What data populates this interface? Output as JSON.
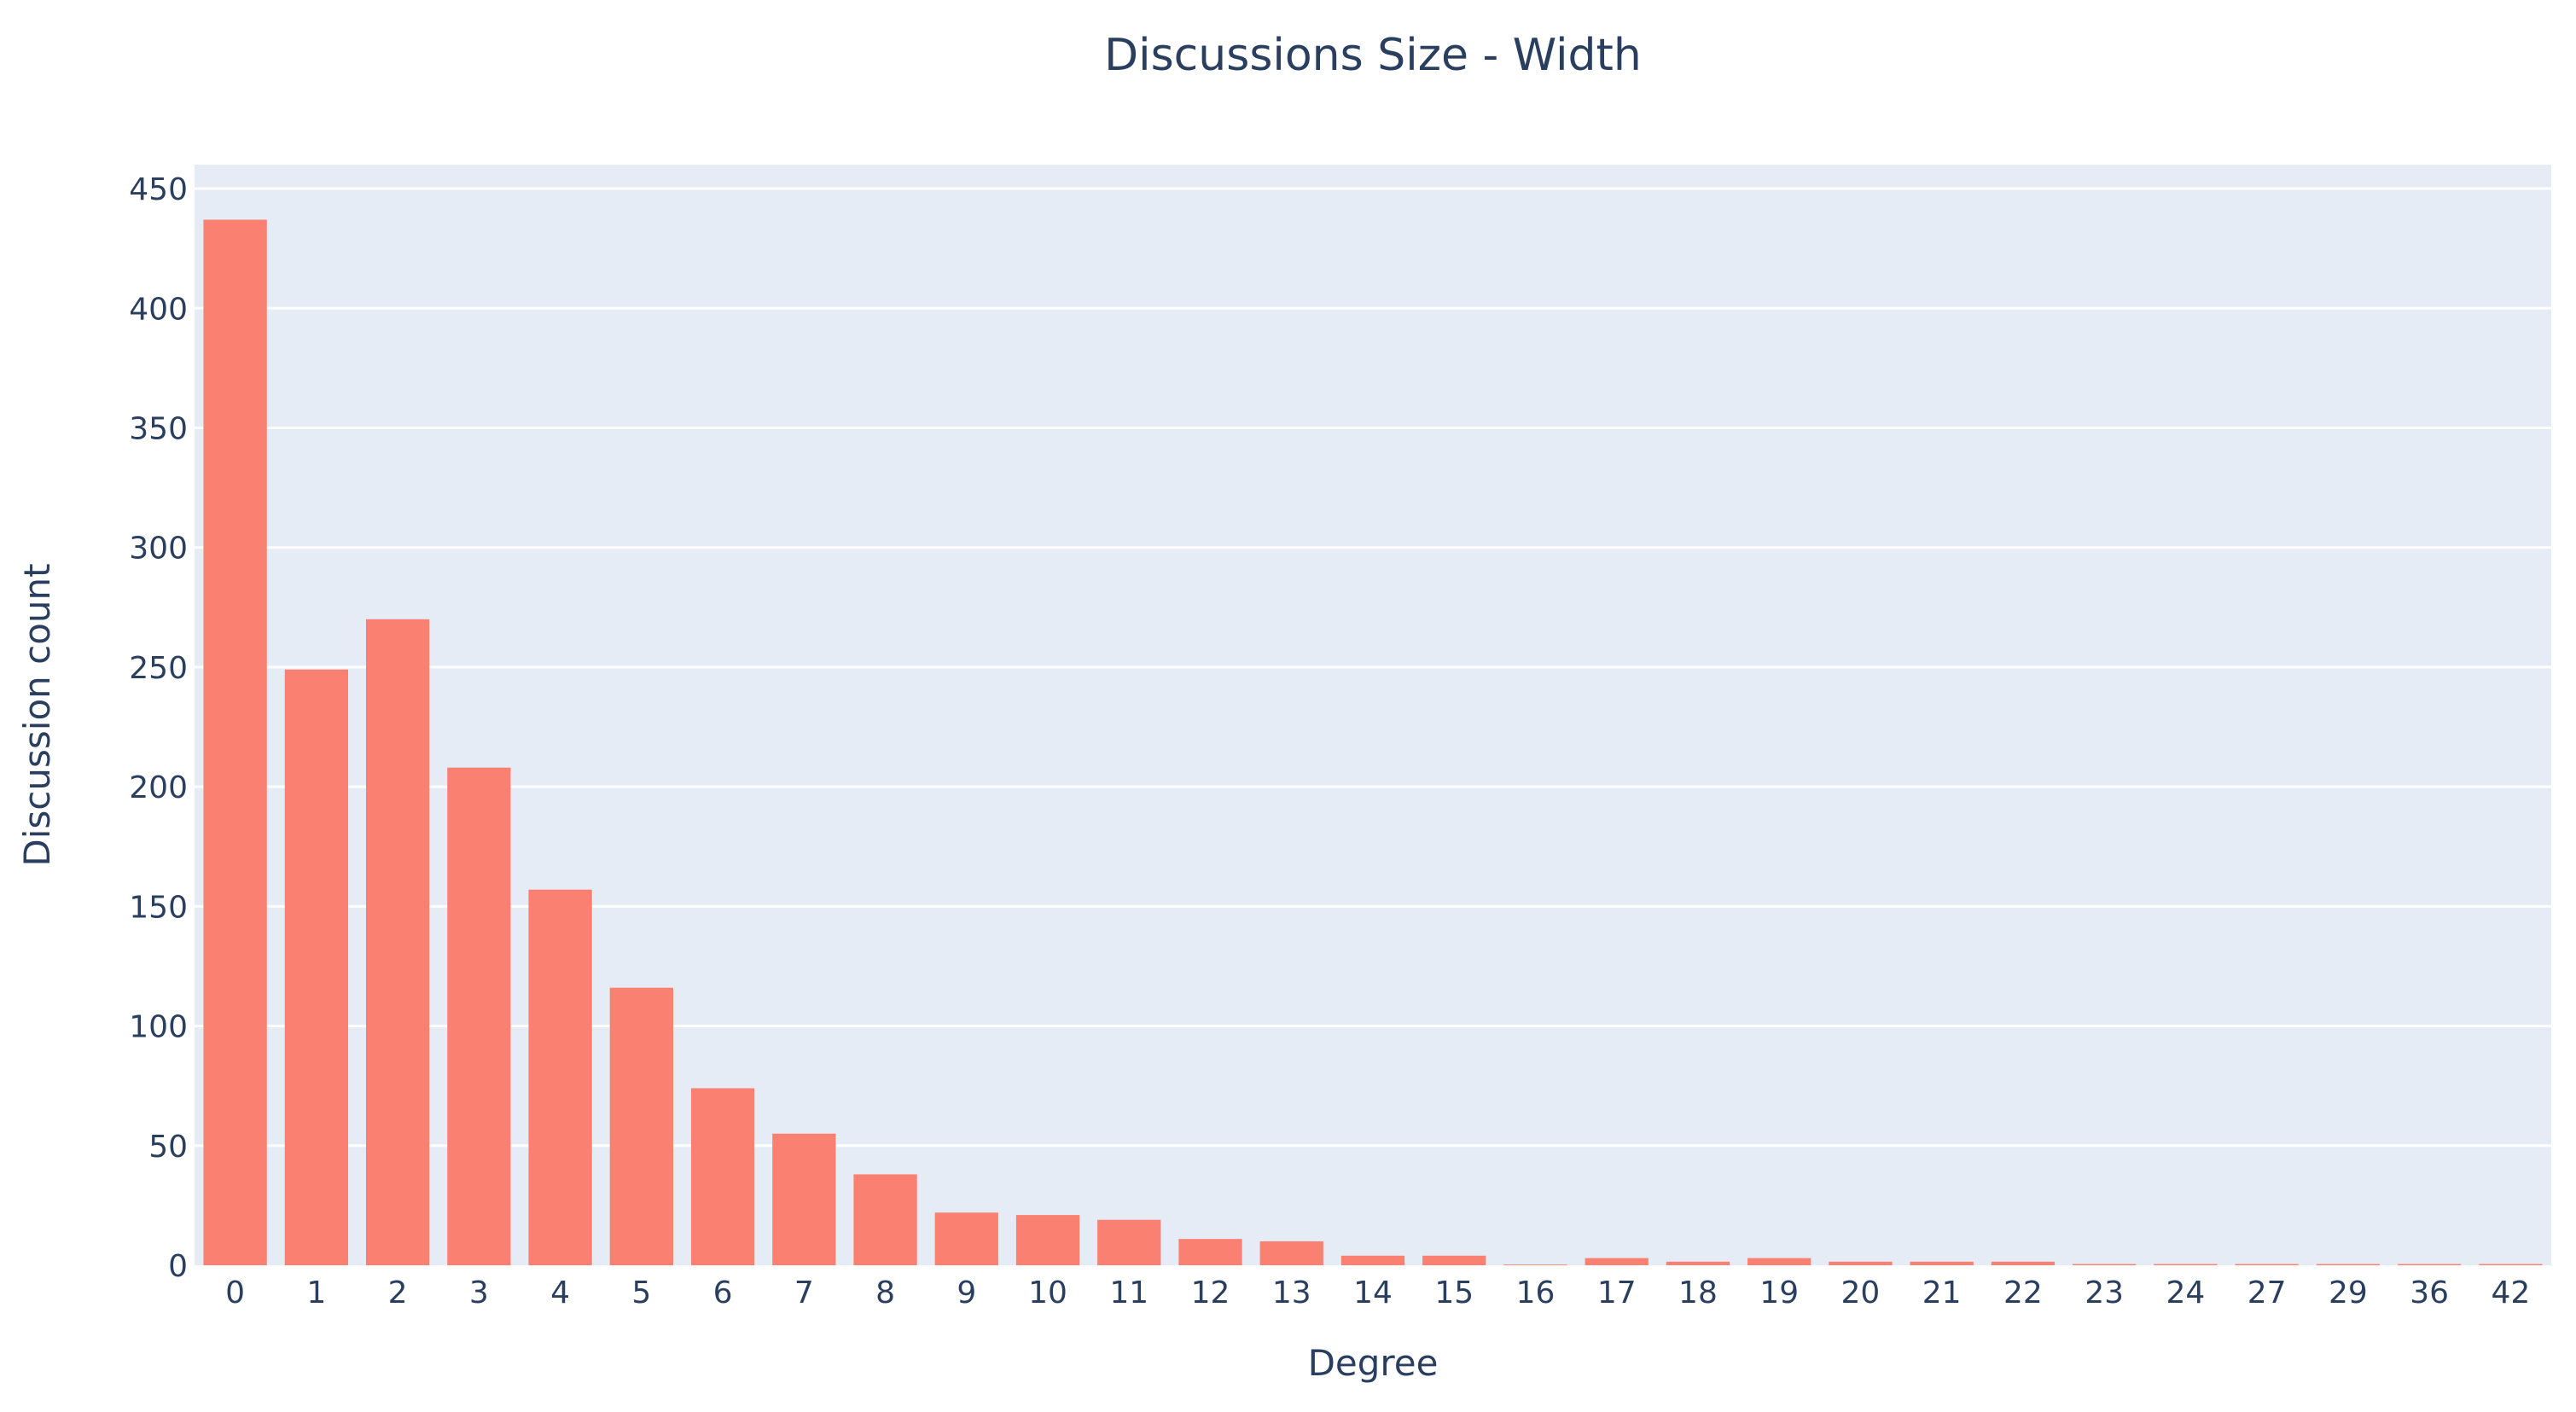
{
  "chart_data": {
    "type": "bar",
    "title": "Discussions Size - Width",
    "xlabel": "Degree",
    "ylabel": "Discussion count",
    "categories": [
      "0",
      "1",
      "2",
      "3",
      "4",
      "5",
      "6",
      "7",
      "8",
      "9",
      "10",
      "11",
      "12",
      "13",
      "14",
      "15",
      "16",
      "17",
      "18",
      "19",
      "20",
      "21",
      "22",
      "23",
      "24",
      "27",
      "29",
      "36",
      "42"
    ],
    "values": [
      437,
      249,
      270,
      208,
      157,
      116,
      74,
      55,
      38,
      22,
      21,
      19,
      11,
      10,
      4,
      4,
      0.3,
      3,
      1.5,
      3,
      1.5,
      1.5,
      1.5,
      0.5,
      0.5,
      0.5,
      0.5,
      0.5,
      0.5
    ],
    "ylim": [
      0,
      460
    ],
    "yticks": [
      0,
      50,
      100,
      150,
      200,
      250,
      300,
      350,
      400,
      450
    ],
    "grid": true,
    "legend": "none",
    "bar_color": "#fa8072",
    "plot_background": "#e5ecf6",
    "text_color": "#2a3f5f"
  }
}
